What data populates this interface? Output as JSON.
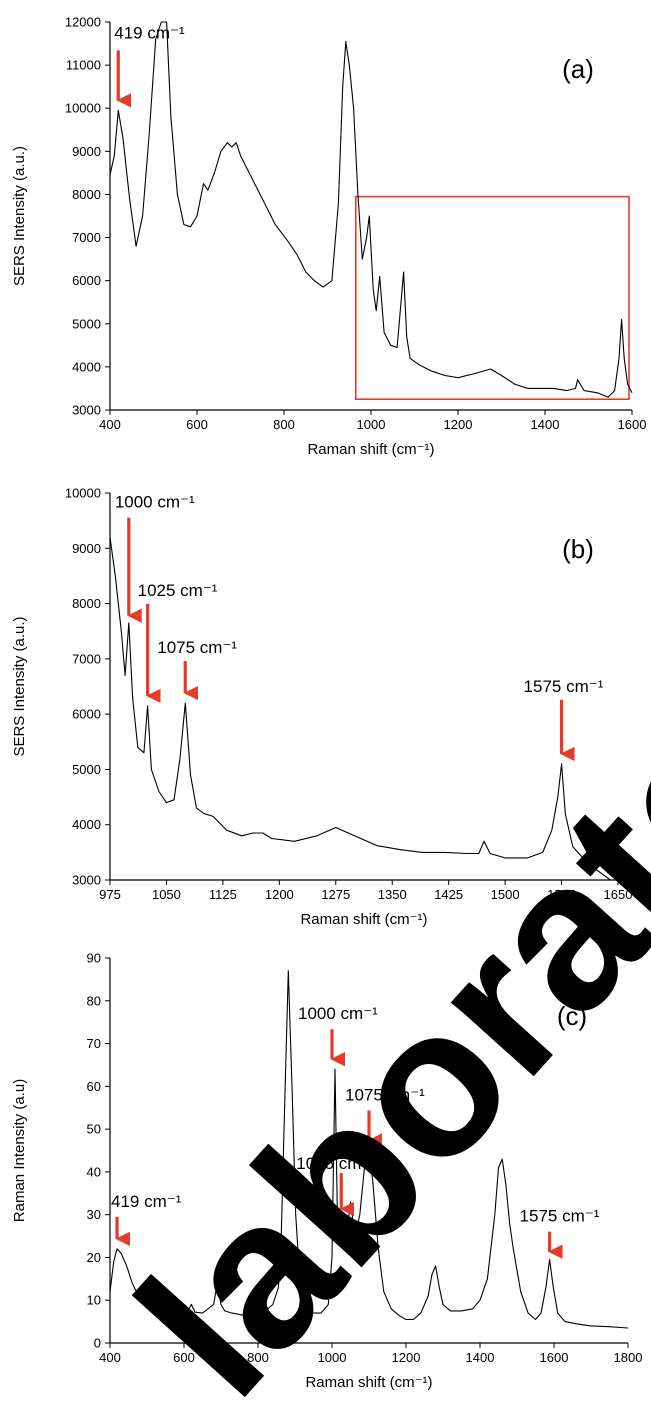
{
  "watermark": {
    "text": "laboratory"
  },
  "chart_data": [
    {
      "type": "line",
      "panel_label": "(a)",
      "xlabel": "Raman shift (cm⁻¹)",
      "ylabel": "SERS Intensity (a.u.)",
      "xlim": [
        400,
        1600
      ],
      "ylim": [
        3000,
        12000
      ],
      "xticks": [
        "400",
        "600",
        "800",
        "1000",
        "1200",
        "1400",
        "1600"
      ],
      "yticks": [
        "3000",
        "4000",
        "5000",
        "6000",
        "7000",
        "8000",
        "9000",
        "10000",
        "11000",
        "12000"
      ],
      "highlight_box": {
        "x": [
          965,
          1600
        ],
        "y": [
          3250,
          7950
        ],
        "color": "#e53b2a"
      },
      "annotations": [
        {
          "text": "419 cm⁻¹",
          "x": 419,
          "y": 9950
        }
      ],
      "series": [
        {
          "color": "#000000",
          "x": [
            400,
            410,
            419,
            430,
            445,
            460,
            475,
            490,
            505,
            518,
            530,
            540,
            555,
            570,
            585,
            600,
            615,
            625,
            640,
            655,
            670,
            680,
            690,
            700,
            720,
            750,
            780,
            810,
            830,
            850,
            870,
            890,
            910,
            925,
            935,
            942,
            950,
            960,
            970,
            980,
            990,
            996,
            1005,
            1012,
            1020,
            1030,
            1045,
            1060,
            1070,
            1075,
            1082,
            1090,
            1110,
            1140,
            1170,
            1200,
            1240,
            1275,
            1300,
            1330,
            1360,
            1390,
            1420,
            1450,
            1470,
            1475,
            1490,
            1520,
            1545,
            1560,
            1570,
            1576,
            1582,
            1590,
            1600
          ],
          "y": [
            8450,
            8900,
            9950,
            9300,
            7900,
            6800,
            7500,
            9400,
            11600,
            12000,
            12000,
            9800,
            8000,
            7300,
            7250,
            7500,
            8250,
            8100,
            8500,
            9000,
            9200,
            9100,
            9200,
            8900,
            8500,
            7900,
            7300,
            6900,
            6600,
            6200,
            6000,
            5850,
            6000,
            7800,
            10500,
            11550,
            11000,
            10000,
            8000,
            6500,
            7000,
            7500,
            5800,
            5300,
            6100,
            4800,
            4500,
            4450,
            5600,
            6200,
            4700,
            4200,
            4050,
            3900,
            3800,
            3750,
            3850,
            3950,
            3800,
            3600,
            3500,
            3500,
            3500,
            3450,
            3500,
            3700,
            3450,
            3400,
            3300,
            3450,
            4200,
            5100,
            4200,
            3600,
            3400
          ]
        }
      ]
    },
    {
      "type": "line",
      "panel_label": "(b)",
      "xlabel": "Raman shift (cm⁻¹)",
      "ylabel": "SERS Intensity (a.u.)",
      "xlim": [
        975,
        1650
      ],
      "ylim": [
        3000,
        10000
      ],
      "xticks": [
        "975",
        "1050",
        "1125",
        "1200",
        "1275",
        "1350",
        "1425",
        "1500",
        "1575",
        "1650"
      ],
      "yticks": [
        "3000",
        "4000",
        "5000",
        "6000",
        "7000",
        "8000",
        "9000",
        "10000"
      ],
      "annotations": [
        {
          "text": "1000 cm⁻¹",
          "x": 1000,
          "y": 7600
        },
        {
          "text": "1025 cm⁻¹",
          "x": 1025,
          "y": 6150
        },
        {
          "text": "1075 cm⁻¹",
          "x": 1075,
          "y": 6200
        },
        {
          "text": "1575 cm⁻¹",
          "x": 1575,
          "y": 5100
        }
      ],
      "series": [
        {
          "color": "#000000",
          "x": [
            975,
            982,
            990,
            995,
            1000,
            1005,
            1012,
            1020,
            1025,
            1030,
            1040,
            1050,
            1060,
            1068,
            1075,
            1082,
            1090,
            1100,
            1112,
            1130,
            1150,
            1165,
            1178,
            1190,
            1220,
            1250,
            1275,
            1300,
            1330,
            1360,
            1390,
            1420,
            1450,
            1465,
            1472,
            1480,
            1500,
            1530,
            1550,
            1562,
            1570,
            1575,
            1580,
            1590,
            1610,
            1630,
            1640
          ],
          "y": [
            9200,
            8500,
            7500,
            6700,
            7650,
            6300,
            5400,
            5300,
            6150,
            5000,
            4600,
            4400,
            4450,
            5200,
            6200,
            4900,
            4300,
            4200,
            4150,
            3900,
            3800,
            3850,
            3850,
            3750,
            3700,
            3800,
            3950,
            3800,
            3620,
            3550,
            3500,
            3500,
            3480,
            3480,
            3700,
            3480,
            3400,
            3400,
            3500,
            3900,
            4500,
            5100,
            4200,
            3600,
            3300,
            3100,
            3000
          ]
        }
      ]
    },
    {
      "type": "line",
      "panel_label": "(c)",
      "xlabel": "Raman shift (cm⁻¹)",
      "ylabel": "Raman Intensity (a.u)",
      "xlim": [
        400,
        1800
      ],
      "ylim": [
        0,
        90
      ],
      "xticks": [
        "400",
        "600",
        "800",
        "1000",
        "1200",
        "1400",
        "1600",
        "1800"
      ],
      "yticks": [
        "0",
        "10",
        "20",
        "30",
        "40",
        "50",
        "60",
        "70",
        "80",
        "90"
      ],
      "annotations": [
        {
          "text": "419 cm⁻¹",
          "x": 419,
          "y": 22
        },
        {
          "text": "1000 cm⁻¹",
          "x": 1000,
          "y": 64
        },
        {
          "text": "1025 cm⁻¹",
          "x": 1025,
          "y": 29
        },
        {
          "text": "1075 cm⁻¹",
          "x": 1100,
          "y": 45
        },
        {
          "text": "1575 cm⁻¹",
          "x": 1588,
          "y": 19
        }
      ],
      "series": [
        {
          "color": "#000000",
          "x": [
            400,
            410,
            419,
            430,
            445,
            460,
            480,
            500,
            530,
            560,
            590,
            610,
            620,
            630,
            650,
            680,
            690,
            700,
            710,
            730,
            760,
            790,
            820,
            840,
            855,
            862,
            872,
            882,
            892,
            902,
            915,
            930,
            950,
            970,
            990,
            1000,
            1008,
            1015,
            1025,
            1035,
            1050,
            1062,
            1075,
            1090,
            1100,
            1110,
            1125,
            1140,
            1160,
            1180,
            1200,
            1220,
            1240,
            1260,
            1270,
            1280,
            1290,
            1300,
            1320,
            1350,
            1380,
            1400,
            1420,
            1440,
            1450,
            1460,
            1470,
            1480,
            1490,
            1510,
            1530,
            1550,
            1565,
            1578,
            1588,
            1598,
            1610,
            1630,
            1660,
            1700,
            1750,
            1800
          ],
          "y": [
            12,
            19,
            22,
            21,
            18,
            14,
            10.5,
            9,
            8,
            7.5,
            7.2,
            7.5,
            9,
            7.2,
            7,
            9,
            14,
            9,
            7.5,
            7,
            6.5,
            6.5,
            7.5,
            9,
            13,
            22,
            55,
            87,
            60,
            30,
            12,
            8,
            7,
            7,
            9,
            20,
            64,
            28,
            30,
            22,
            33,
            25,
            30,
            43,
            45,
            38,
            22,
            12,
            8,
            6.5,
            5.5,
            5.5,
            7,
            11,
            16,
            18,
            13,
            9,
            7.5,
            7.5,
            8,
            10,
            15,
            30,
            41,
            43,
            37,
            28,
            22,
            12,
            7,
            5.5,
            7,
            13,
            19.5,
            13,
            7,
            5,
            4.5,
            4,
            3.8,
            3.5
          ]
        }
      ]
    }
  ]
}
